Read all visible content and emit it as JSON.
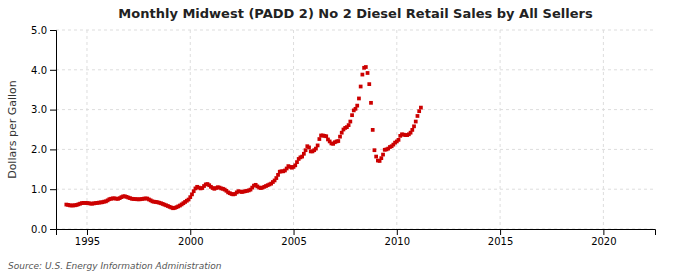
{
  "chart_data": {
    "type": "scatter",
    "title": "Monthly Midwest (PADD 2) No 2 Diesel Retail Sales by All Sellers",
    "y_label": "Dollars per Gallon",
    "annotations": [
      "Source: U.S. Energy Information Administration"
    ],
    "color": "#cc0000",
    "marker": "square",
    "grid": true,
    "xlim": [
      1993.5,
      2022.5
    ],
    "ylim": [
      0.0,
      5.0
    ],
    "xticks": [
      1995,
      2000,
      2005,
      2010,
      2015,
      2020
    ],
    "yticks": [
      {
        "value": 0.0,
        "label": "0.0"
      },
      {
        "value": 1.0,
        "label": "1.0"
      },
      {
        "value": 2.0,
        "label": "2.0"
      },
      {
        "value": 3.0,
        "label": "3.0"
      },
      {
        "value": 4.0,
        "label": "4.0"
      },
      {
        "value": 5.0,
        "label": "5.0"
      }
    ],
    "x": [
      1994,
      1994.0833,
      1994.1667,
      1994.25,
      1994.3333,
      1994.4167,
      1994.5,
      1994.5833,
      1994.6667,
      1994.75,
      1994.8333,
      1994.9167,
      1995,
      1995.0833,
      1995.1667,
      1995.25,
      1995.3333,
      1995.4167,
      1995.5,
      1995.5833,
      1995.6667,
      1995.75,
      1995.8333,
      1995.9167,
      1996,
      1996.0833,
      1996.1667,
      1996.25,
      1996.3333,
      1996.4167,
      1996.5,
      1996.5833,
      1996.6667,
      1996.75,
      1996.8333,
      1996.9167,
      1997,
      1997.0833,
      1997.1667,
      1997.25,
      1997.3333,
      1997.4167,
      1997.5,
      1997.5833,
      1997.6667,
      1997.75,
      1997.8333,
      1997.9167,
      1998,
      1998.0833,
      1998.1667,
      1998.25,
      1998.3333,
      1998.4167,
      1998.5,
      1998.5833,
      1998.6667,
      1998.75,
      1998.8333,
      1998.9167,
      1999,
      1999.0833,
      1999.1667,
      1999.25,
      1999.3333,
      1999.4167,
      1999.5,
      1999.5833,
      1999.6667,
      1999.75,
      1999.8333,
      1999.9167,
      2000,
      2000.0833,
      2000.1667,
      2000.25,
      2000.3333,
      2000.4167,
      2000.5,
      2000.5833,
      2000.6667,
      2000.75,
      2000.8333,
      2000.9167,
      2001,
      2001.0833,
      2001.1667,
      2001.25,
      2001.3333,
      2001.4167,
      2001.5,
      2001.5833,
      2001.6667,
      2001.75,
      2001.8333,
      2001.9167,
      2002,
      2002.0833,
      2002.1667,
      2002.25,
      2002.3333,
      2002.4167,
      2002.5,
      2002.5833,
      2002.6667,
      2002.75,
      2002.8333,
      2002.9167,
      2003,
      2003.0833,
      2003.1667,
      2003.25,
      2003.3333,
      2003.4167,
      2003.5,
      2003.5833,
      2003.6667,
      2003.75,
      2003.8333,
      2003.9167,
      2004,
      2004.0833,
      2004.1667,
      2004.25,
      2004.3333,
      2004.4167,
      2004.5,
      2004.5833,
      2004.6667,
      2004.75,
      2004.8333,
      2004.9167,
      2005,
      2005.0833,
      2005.1667,
      2005.25,
      2005.3333,
      2005.4167,
      2005.5,
      2005.5833,
      2005.6667,
      2005.75,
      2005.8333,
      2005.9167,
      2006,
      2006.0833,
      2006.1667,
      2006.25,
      2006.3333,
      2006.4167,
      2006.5,
      2006.5833,
      2006.6667,
      2006.75,
      2006.8333,
      2006.9167,
      2007,
      2007.0833,
      2007.1667,
      2007.25,
      2007.3333,
      2007.4167,
      2007.5,
      2007.5833,
      2007.6667,
      2007.75,
      2007.8333,
      2007.9167,
      2008,
      2008.0833,
      2008.1667,
      2008.25,
      2008.3333,
      2008.4167,
      2008.5,
      2008.5833,
      2008.6667,
      2008.75,
      2008.8333,
      2008.9167,
      2009,
      2009.0833,
      2009.1667,
      2009.25,
      2009.3333,
      2009.4167,
      2009.5,
      2009.5833,
      2009.6667,
      2009.75,
      2009.8333,
      2009.9167,
      2010,
      2010.0833,
      2010.1667,
      2010.25,
      2010.3333,
      2010.4167,
      2010.5,
      2010.5833,
      2010.6667,
      2010.75,
      2010.8333,
      2010.9167,
      2011,
      2011.0833,
      2011.1667
    ],
    "values": [
      0.614,
      0.606,
      0.594,
      0.591,
      0.592,
      0.596,
      0.605,
      0.62,
      0.636,
      0.65,
      0.656,
      0.655,
      0.651,
      0.648,
      0.638,
      0.637,
      0.643,
      0.651,
      0.656,
      0.663,
      0.668,
      0.673,
      0.688,
      0.695,
      0.72,
      0.748,
      0.76,
      0.77,
      0.77,
      0.762,
      0.757,
      0.775,
      0.8,
      0.82,
      0.822,
      0.808,
      0.79,
      0.775,
      0.76,
      0.755,
      0.75,
      0.748,
      0.745,
      0.748,
      0.755,
      0.762,
      0.768,
      0.765,
      0.742,
      0.72,
      0.695,
      0.685,
      0.68,
      0.672,
      0.66,
      0.647,
      0.63,
      0.612,
      0.595,
      0.578,
      0.557,
      0.54,
      0.522,
      0.53,
      0.548,
      0.568,
      0.59,
      0.618,
      0.648,
      0.68,
      0.71,
      0.74,
      0.8,
      0.87,
      0.95,
      1.02,
      1.06,
      1.04,
      1.02,
      1.03,
      1.08,
      1.12,
      1.13,
      1.1,
      1.06,
      1.03,
      1.01,
      1.03,
      1.05,
      1.04,
      1.02,
      1.01,
      0.99,
      0.96,
      0.92,
      0.9,
      0.88,
      0.87,
      0.88,
      0.92,
      0.95,
      0.94,
      0.93,
      0.94,
      0.95,
      0.96,
      0.97,
      0.99,
      1.04,
      1.09,
      1.11,
      1.07,
      1.04,
      1.03,
      1.04,
      1.06,
      1.08,
      1.1,
      1.12,
      1.14,
      1.18,
      1.22,
      1.28,
      1.36,
      1.44,
      1.45,
      1.45,
      1.47,
      1.52,
      1.58,
      1.56,
      1.54,
      1.56,
      1.6,
      1.68,
      1.76,
      1.8,
      1.82,
      1.89,
      1.98,
      2.08,
      2.05,
      1.95,
      1.95,
      1.98,
      2.02,
      2.1,
      2.26,
      2.35,
      2.35,
      2.34,
      2.33,
      2.25,
      2.2,
      2.15,
      2.14,
      2.18,
      2.2,
      2.21,
      2.32,
      2.42,
      2.5,
      2.54,
      2.56,
      2.61,
      2.7,
      2.86,
      2.98,
      3.02,
      3.1,
      3.28,
      3.58,
      3.88,
      4.05,
      4.07,
      3.92,
      3.64,
      3.17,
      2.49,
      1.98,
      1.82,
      1.72,
      1.71,
      1.78,
      1.87,
      1.99,
      2.0,
      2.02,
      2.06,
      2.08,
      2.12,
      2.17,
      2.2,
      2.24,
      2.34,
      2.38,
      2.37,
      2.36,
      2.36,
      2.38,
      2.42,
      2.49,
      2.58,
      2.7,
      2.84,
      2.96,
      3.05
    ]
  }
}
